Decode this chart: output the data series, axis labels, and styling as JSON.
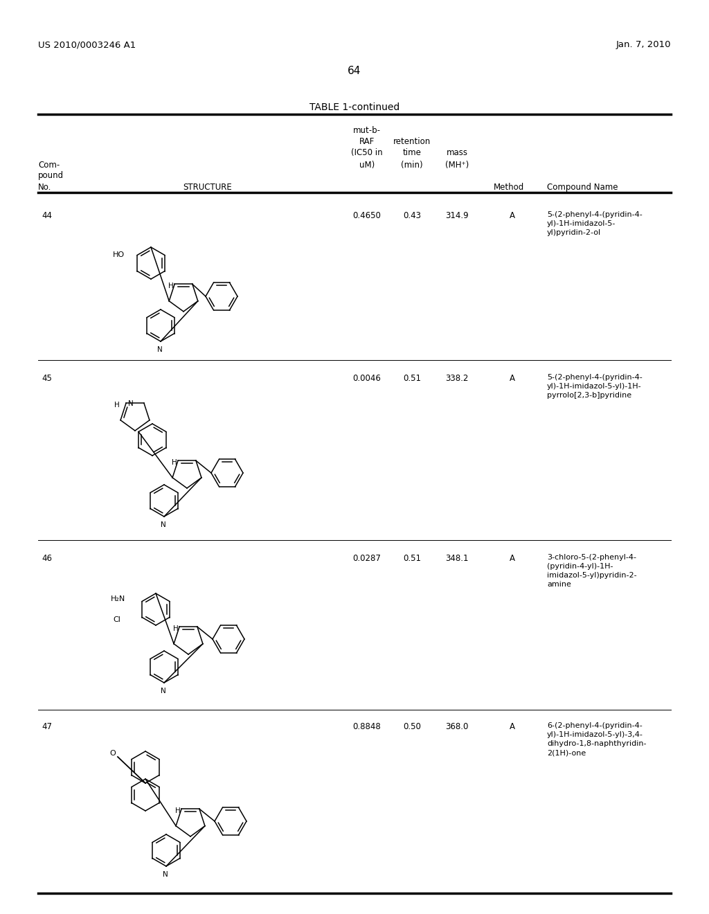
{
  "page_number": "64",
  "header_left": "US 2010/0003246 A1",
  "header_right": "Jan. 7, 2010",
  "table_title": "TABLE 1-continued",
  "col_headers": {
    "col1_lines": [
      "Com-",
      "pound",
      "No."
    ],
    "col2": "STRUCTURE",
    "col3_lines": [
      "mut-b-",
      "RAF",
      "(IC50 in",
      "uM)"
    ],
    "col4_lines": [
      "retention",
      "time",
      "(min)"
    ],
    "col5_lines": [
      "mass",
      "(MH⁺)"
    ],
    "col6": "Method",
    "col7": "Compound Name"
  },
  "compounds": [
    {
      "no": "44",
      "ic50": "0.4650",
      "retention": "0.43",
      "mass": "314.9",
      "method": "A",
      "name": "5-(2-phenyl-4-(pyridin-4-\nyl)-1H-imidazol-5-\nyl)pyridin-2-ol"
    },
    {
      "no": "45",
      "ic50": "0.0046",
      "retention": "0.51",
      "mass": "338.2",
      "method": "A",
      "name": "5-(2-phenyl-4-(pyridin-4-\nyl)-1H-imidazol-5-yl)-1H-\npyrrolo[2,3-b]pyridine"
    },
    {
      "no": "46",
      "ic50": "0.0287",
      "retention": "0.51",
      "mass": "348.1",
      "method": "A",
      "name": "3-chloro-5-(2-phenyl-4-\n(pyridin-4-yl)-1H-\nimidazol-5-yl)pyridin-2-\namine"
    },
    {
      "no": "47",
      "ic50": "0.8848",
      "retention": "0.50",
      "mass": "368.0",
      "method": "A",
      "name": "6-(2-phenyl-4-(pyridin-4-\nyl)-1H-imidazol-5-yl)-3,4-\ndihydro-1,8-naphthyridin-\n2(1H)-one"
    }
  ],
  "background_color": "#ffffff",
  "text_color": "#000000",
  "font_size_header": 9,
  "font_size_body": 8.5,
  "font_size_page": 11
}
